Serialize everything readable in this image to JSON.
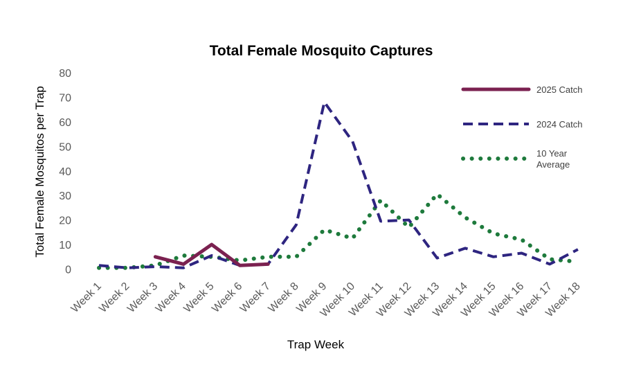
{
  "chart_data": {
    "type": "line",
    "title": "Total Female Mosquito Captures",
    "xlabel": "Trap Week",
    "ylabel": "Total Female Mosquitos per Trap",
    "ylim": [
      0,
      80
    ],
    "yticks": [
      0,
      10,
      20,
      30,
      40,
      50,
      60,
      70,
      80
    ],
    "grid": false,
    "legend_position": "right",
    "categories": [
      "Week 1",
      "Week 2",
      "Week 3",
      "Week 4",
      "Week 5",
      "Week 6",
      "Week 7",
      "Week 8",
      "Week 9",
      "Week 10",
      "Week 11",
      "Week 12",
      "Week 13",
      "Week 14",
      "Week 15",
      "Week 16",
      "Week 17",
      "Week 18"
    ],
    "series": [
      {
        "name": "2025 Catch",
        "style": "solid",
        "color": "#7b2150",
        "values": [
          null,
          null,
          5,
          2,
          10,
          1.5,
          2,
          null,
          null,
          null,
          null,
          null,
          null,
          null,
          null,
          null,
          null,
          null
        ]
      },
      {
        "name": "2024 Catch",
        "style": "dashed",
        "color": "#2e2580",
        "values": [
          1.5,
          0.5,
          1,
          0.5,
          5.5,
          1.5,
          2,
          18,
          68,
          52,
          19.5,
          20,
          4.5,
          8.5,
          5,
          6.5,
          2,
          8
        ]
      },
      {
        "name": "10 Year Average",
        "legend_lines": [
          "10 Year",
          "Average"
        ],
        "style": "dotted",
        "color": "#1e7a3c",
        "values": [
          0.5,
          0.5,
          1.5,
          5.5,
          5,
          3.5,
          5,
          5,
          16,
          12.5,
          28,
          17,
          30.5,
          21,
          14.5,
          12,
          4,
          3
        ]
      }
    ]
  }
}
